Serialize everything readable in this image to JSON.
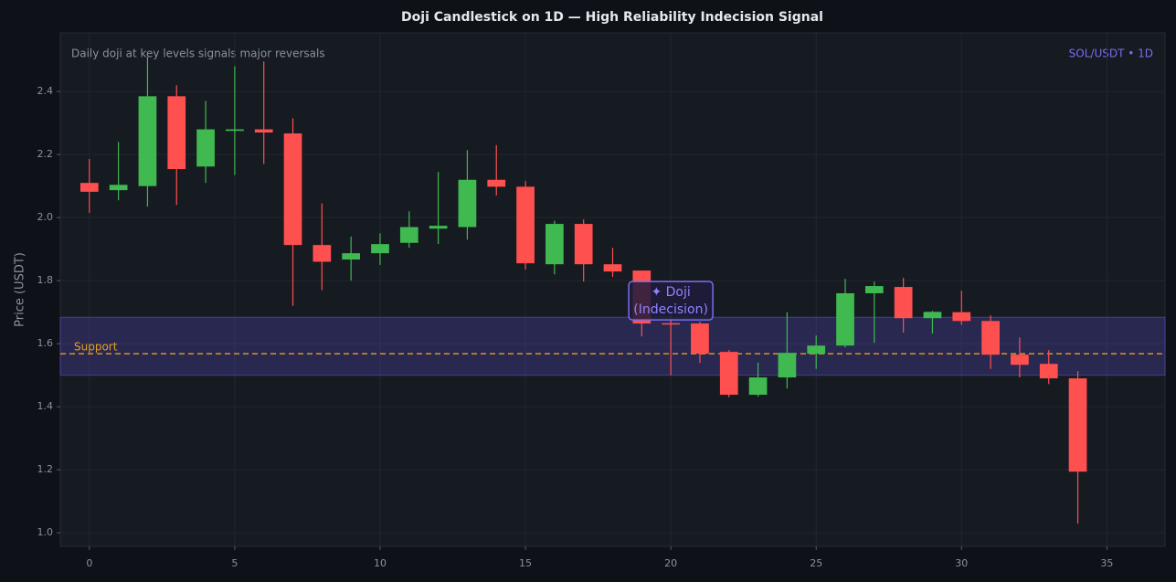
{
  "chart_data": {
    "type": "candlestick",
    "title": "Doji Candlestick on 1D — High Reliability Indecision Signal",
    "subtitle": "Daily doji at key levels signals major reversals",
    "symbol_label": "SOL/USDT • 1D",
    "y_label": "Price (USDT)",
    "x": [
      0,
      1,
      2,
      3,
      4,
      5,
      6,
      7,
      8,
      9,
      10,
      11,
      12,
      13,
      14,
      15,
      16,
      17,
      18,
      19,
      20,
      21,
      22,
      23,
      24,
      25,
      26,
      27,
      28,
      29,
      30,
      31,
      32,
      33,
      34
    ],
    "open": [
      2.11,
      2.087,
      2.1,
      2.385,
      2.162,
      2.275,
      2.28,
      2.267,
      1.913,
      1.867,
      1.887,
      1.92,
      1.965,
      1.97,
      2.12,
      2.098,
      1.852,
      1.98,
      1.852,
      1.832,
      1.665,
      1.664,
      1.574,
      1.438,
      1.493,
      1.568,
      1.594,
      1.76,
      1.78,
      1.681,
      1.7,
      1.672,
      1.565,
      1.536,
      1.49
    ],
    "high": [
      2.186,
      2.24,
      2.51,
      2.42,
      2.37,
      2.48,
      2.495,
      2.315,
      2.045,
      1.94,
      1.95,
      2.02,
      2.145,
      2.214,
      2.23,
      2.116,
      1.99,
      1.994,
      1.904,
      1.832,
      1.69,
      1.67,
      1.58,
      1.54,
      1.7,
      1.626,
      1.806,
      1.797,
      1.809,
      1.704,
      1.768,
      1.69,
      1.62,
      1.58,
      1.513
    ],
    "low": [
      2.015,
      2.055,
      2.035,
      2.04,
      2.11,
      2.135,
      2.17,
      1.72,
      1.77,
      1.8,
      1.85,
      1.904,
      1.916,
      1.93,
      2.07,
      1.835,
      1.82,
      1.797,
      1.812,
      1.623,
      1.5,
      1.539,
      1.43,
      1.432,
      1.458,
      1.52,
      1.588,
      1.603,
      1.635,
      1.632,
      1.66,
      1.52,
      1.493,
      1.472,
      1.029
    ],
    "close": [
      2.082,
      2.104,
      2.385,
      2.154,
      2.28,
      2.28,
      2.27,
      1.913,
      1.86,
      1.887,
      1.916,
      1.97,
      1.974,
      2.12,
      2.098,
      1.855,
      1.98,
      1.852,
      1.829,
      1.664,
      1.662,
      1.568,
      1.438,
      1.493,
      1.571,
      1.594,
      1.76,
      1.783,
      1.681,
      1.701,
      1.672,
      1.565,
      1.533,
      1.49,
      1.194
    ],
    "up_color": "#3fb950",
    "down_color": "#ff5050",
    "support_zone": [
      1.5,
      1.684
    ],
    "support_level": 1.568,
    "support_label": "Support",
    "annotation": {
      "lines": [
        "✦ Doji",
        "(Indecision)"
      ],
      "x": 20
    },
    "xlim": [
      -1,
      37
    ],
    "ylim": [
      0.957,
      2.586
    ],
    "xticks": [
      0,
      5,
      10,
      15,
      20,
      25,
      30,
      35
    ],
    "yticks": [
      {
        "value": 1.0,
        "label": "1.0"
      },
      1.2,
      1.4,
      1.6,
      1.8,
      {
        "value": 2.0,
        "label": "2.0"
      },
      2.2,
      2.4
    ],
    "grid": true
  }
}
